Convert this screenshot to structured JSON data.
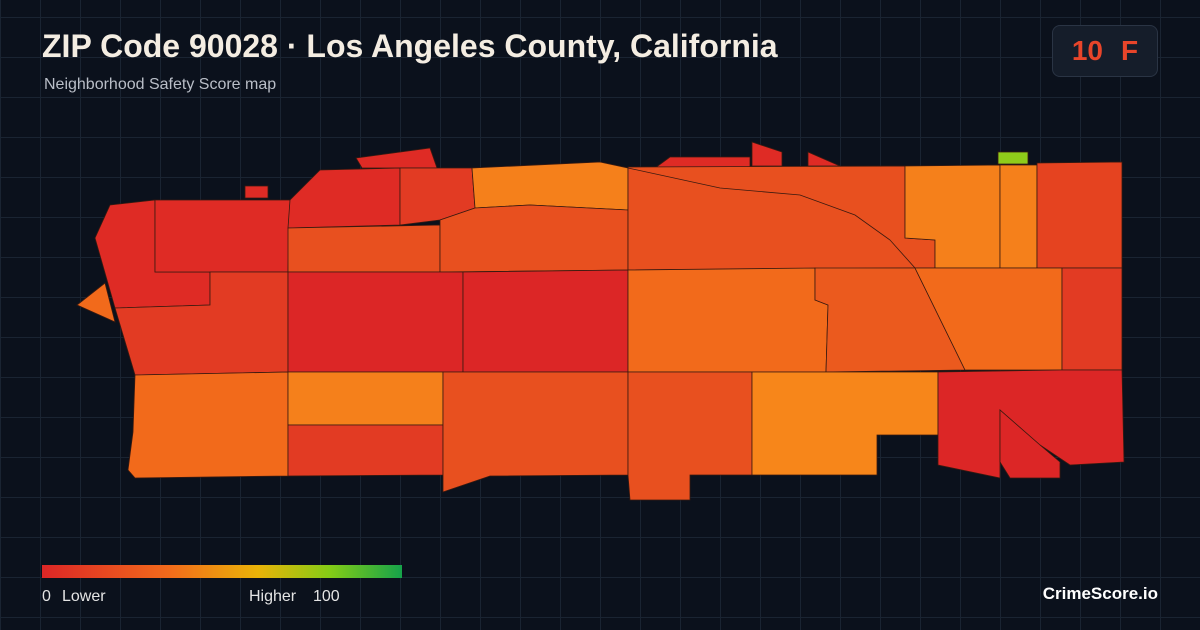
{
  "header": {
    "title": "ZIP Code 90028 · Los Angeles County, California",
    "subtitle": "Neighborhood Safety Score map"
  },
  "badge": {
    "score": "10",
    "grade": "F"
  },
  "legend": {
    "min": "0",
    "min_label": "Lower",
    "max_label": "Higher",
    "max": "100"
  },
  "footer": {
    "brand": "CrimeScore.io"
  }
}
